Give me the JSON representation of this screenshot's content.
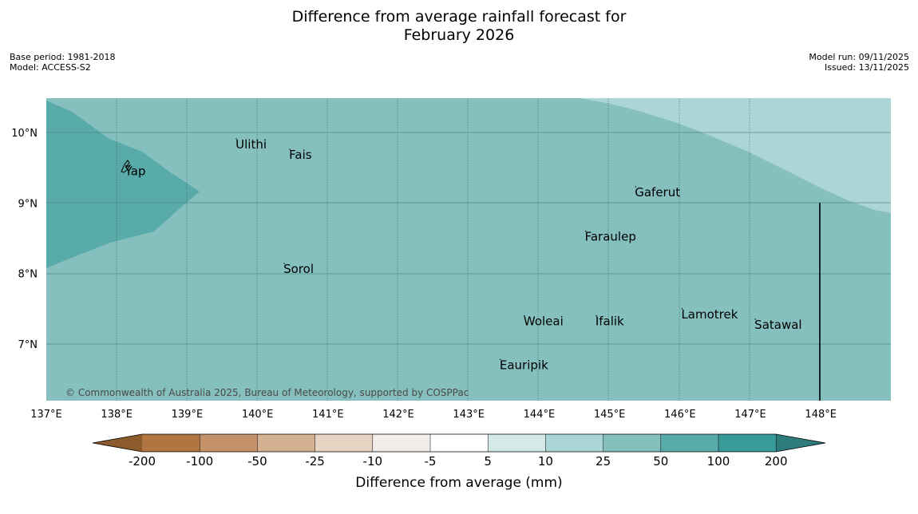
{
  "title_line1": "Difference from average rainfall forecast for",
  "title_line2": "February 2026",
  "base_period": "Base period: 1981-2018",
  "model": "Model: ACCESS-S2",
  "model_run": "Model run: 09/11/2025",
  "issued": "Issued: 13/11/2025",
  "copyright": "© Commonwealth of Australia 2025, Bureau of Meteorology, supported by COSPPac",
  "lon_labels": [
    "137°E",
    "138°E",
    "139°E",
    "140°E",
    "141°E",
    "142°E",
    "143°E",
    "144°E",
    "145°E",
    "146°E",
    "147°E",
    "148°E"
  ],
  "lat_labels": [
    "10°N",
    "9°N",
    "8°N",
    "7°N"
  ],
  "places": [
    {
      "name": "Yap",
      "lon": 138.13,
      "lat": 9.53
    },
    {
      "name": "Ulithi",
      "lon": 139.7,
      "lat": 9.91
    },
    {
      "name": "Fais",
      "lon": 140.46,
      "lat": 9.76
    },
    {
      "name": "Gaferut",
      "lon": 145.37,
      "lat": 9.23
    },
    {
      "name": "Faraulep",
      "lon": 144.66,
      "lat": 8.6
    },
    {
      "name": "Sorol",
      "lon": 140.38,
      "lat": 8.14
    },
    {
      "name": "Lamotrek",
      "lon": 146.03,
      "lat": 7.5
    },
    {
      "name": "Woleai",
      "lon": 143.79,
      "lat": 7.4
    },
    {
      "name": "Ifalik",
      "lon": 144.81,
      "lat": 7.4
    },
    {
      "name": "Satawal",
      "lon": 147.07,
      "lat": 7.35
    },
    {
      "name": "Eauripik",
      "lon": 143.45,
      "lat": 6.78
    }
  ],
  "colorbar": {
    "title": "Difference from average (mm)",
    "ticks": [
      "-200",
      "-100",
      "-50",
      "-25",
      "-10",
      "-5",
      "5",
      "10",
      "25",
      "50",
      "100",
      "200"
    ],
    "colors": [
      "#8c5a2b",
      "#b07540",
      "#c4926a",
      "#d4b190",
      "#e6d3c2",
      "#f1eee9",
      "#ffffff",
      "#d4eae8",
      "#acd6d5",
      "#85bfbe",
      "#59abaa",
      "#379b99",
      "#2d7b7a"
    ]
  }
}
